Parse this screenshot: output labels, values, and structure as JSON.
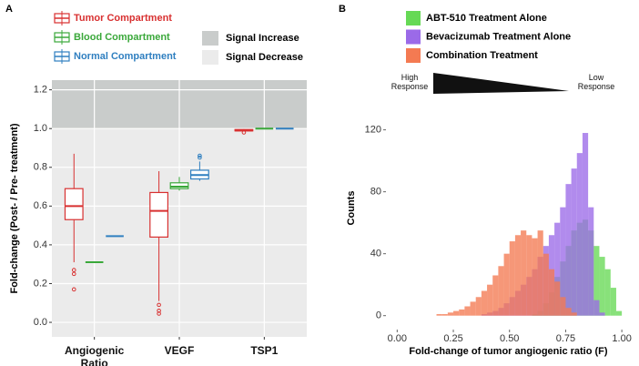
{
  "chart_data": [
    {
      "type": "box",
      "panel_label": "A",
      "ylabel": "Fold-change (Post- / Pre- treatment)",
      "categories": [
        "Angiogenic Ratio",
        "VEGF",
        "TSP1"
      ],
      "ylim": [
        -0.075,
        1.25
      ],
      "yticks": [
        {
          "value": 0,
          "label": "0.0"
        },
        0.2,
        0.4,
        0.6,
        0.8,
        {
          "value": 1,
          "label": "1.0"
        },
        1.2
      ],
      "grid": true,
      "threshold": 1,
      "regions": [
        {
          "name": "Signal Increase",
          "color": "#c9cccb"
        },
        {
          "name": "Signal Decrease",
          "color": "#ebebeb"
        }
      ],
      "series": [
        {
          "name": "Tumor Compartment",
          "color": "#d83030",
          "values": [
            {
              "min": 0.31,
              "q1": 0.53,
              "median": 0.6,
              "q3": 0.69,
              "max": 0.87,
              "outliers": [
                0.27,
                0.25,
                0.17
              ]
            },
            {
              "min": 0.11,
              "q1": 0.44,
              "median": 0.575,
              "q3": 0.67,
              "max": 0.78,
              "outliers": [
                0.09,
                0.06,
                0.045
              ]
            },
            {
              "min": 0.985,
              "q1": 0.988,
              "median": 0.99,
              "q3": 0.995,
              "max": 0.997,
              "outliers": [
                0.98
              ]
            }
          ]
        },
        {
          "name": "Blood Compartment",
          "color": "#3aa83a",
          "values": [
            {
              "min": 0.31,
              "q1": 0.31,
              "median": 0.31,
              "q3": 0.31,
              "max": 0.31,
              "outliers": []
            },
            {
              "min": 0.68,
              "q1": 0.69,
              "median": 0.7,
              "q3": 0.72,
              "max": 0.75,
              "outliers": []
            },
            {
              "min": 1,
              "q1": 1,
              "median": 1,
              "q3": 1,
              "max": 1,
              "outliers": []
            }
          ]
        },
        {
          "name": "Normal Compartment",
          "color": "#2f7fc0",
          "values": [
            {
              "min": 0.445,
              "q1": 0.445,
              "median": 0.445,
              "q3": 0.445,
              "max": 0.445,
              "outliers": []
            },
            {
              "min": 0.73,
              "q1": 0.74,
              "median": 0.76,
              "q3": 0.785,
              "max": 0.83,
              "outliers": [
                0.85,
                0.86
              ]
            },
            {
              "min": 1,
              "q1": 1,
              "median": 1,
              "q3": 1,
              "max": 1,
              "outliers": []
            }
          ]
        }
      ]
    },
    {
      "type": "histogram",
      "panel_label": "B",
      "xlabel": "Fold-change of tumor angiogenic ratio (F)",
      "ylabel": "Counts",
      "annotations": [
        "High Response",
        "Low Response"
      ],
      "xlim": [
        -0.05,
        1.04
      ],
      "xticks": [
        {
          "value": 0,
          "label": "0.00"
        },
        0.25,
        {
          "value": 0.5,
          "label": "0.50"
        },
        0.75,
        {
          "value": 1,
          "label": "1.00"
        }
      ],
      "ylim": [
        -9,
        148
      ],
      "yticks": [
        0,
        40,
        80,
        120
      ],
      "bins": [
        0.15,
        0.175,
        0.2,
        0.225,
        0.25,
        0.275,
        0.3,
        0.325,
        0.35,
        0.375,
        0.4,
        0.425,
        0.45,
        0.475,
        0.5,
        0.525,
        0.55,
        0.575,
        0.6,
        0.625,
        0.65,
        0.675,
        0.7,
        0.725,
        0.75,
        0.775,
        0.8,
        0.825,
        0.85,
        0.875,
        0.9,
        0.925,
        0.95,
        0.975,
        1.0
      ],
      "series": [
        {
          "name": "ABT-510 Treatment Alone",
          "color": "#66d955",
          "values": [
            0,
            0,
            0,
            0,
            0,
            0,
            0,
            0,
            0,
            0,
            0,
            0,
            0,
            0,
            0,
            0,
            0,
            0,
            1,
            3,
            8,
            15,
            25,
            35,
            45,
            55,
            60,
            62,
            55,
            45,
            38,
            30,
            18,
            3
          ]
        },
        {
          "name": "Bevacizumab Treatment Alone",
          "color": "#9b6ae8",
          "values": [
            0,
            0,
            0,
            0,
            0,
            0,
            0,
            0,
            0,
            1,
            2,
            3,
            5,
            8,
            12,
            16,
            20,
            25,
            30,
            38,
            45,
            52,
            60,
            70,
            85,
            95,
            105,
            118,
            70,
            10,
            2,
            0,
            0,
            0
          ]
        },
        {
          "name": "Combination Treatment",
          "color": "#f47a52",
          "values": [
            0,
            1,
            1,
            2,
            3,
            4,
            6,
            9,
            12,
            16,
            20,
            26,
            32,
            40,
            48,
            52,
            55,
            52,
            50,
            55,
            40,
            30,
            22,
            12,
            5,
            2,
            0,
            0,
            0,
            0,
            0,
            0,
            0,
            0
          ]
        }
      ]
    }
  ]
}
